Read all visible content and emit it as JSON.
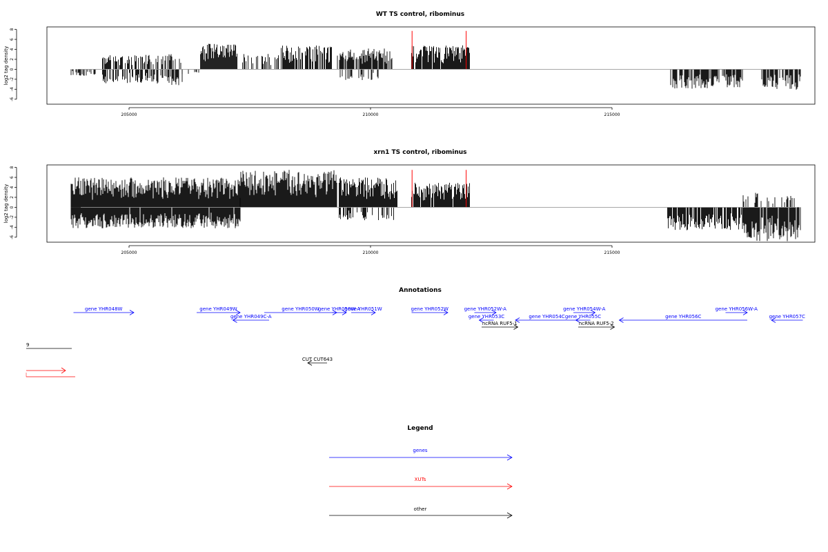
{
  "panels": [
    {
      "id": "wt",
      "title": "WT TS control, ribominus",
      "ylabel": "log2 tag density",
      "ylim": [
        -7,
        8.5
      ],
      "yticks": [
        -6,
        -4,
        -2,
        0,
        2,
        4,
        6,
        8
      ],
      "xlim": [
        203300,
        219200
      ],
      "xticks": [
        205000,
        210000,
        215000
      ],
      "xtick_labels": [
        "205000",
        "210000",
        "215000"
      ],
      "red_spikes": [
        {
          "x": 210860,
          "y": 7.7
        },
        {
          "x": 211980,
          "y": 7.7
        }
      ]
    },
    {
      "id": "xrn1",
      "title": "xrn1 TS control, ribominus",
      "ylabel": "log2 tag density",
      "ylim": [
        -7,
        8.5
      ],
      "yticks": [
        -6,
        -4,
        -2,
        0,
        2,
        4,
        6,
        8
      ],
      "xlim": [
        203300,
        219200
      ],
      "xticks": [
        205000,
        210000,
        215000
      ],
      "xtick_labels": [
        "205000",
        "210000",
        "215000"
      ],
      "red_spikes": [
        {
          "x": 210860,
          "y": 7.5
        },
        {
          "x": 211980,
          "y": 7.5
        }
      ]
    }
  ],
  "chart_data": [
    {
      "type": "bar",
      "title": "WT TS control, ribominus",
      "ylabel": "log2 tag density",
      "xlabel": "",
      "ylim": [
        -7,
        8.5
      ],
      "xlim": [
        203300,
        219200
      ],
      "grid": false,
      "segments": [
        {
          "x0": 203800,
          "x1": 204300,
          "sign": -1,
          "max": 1.3,
          "density": 0.4
        },
        {
          "x0": 204450,
          "x1": 205400,
          "sign": 1,
          "max": 3.0,
          "density": 0.6
        },
        {
          "x0": 204450,
          "x1": 205400,
          "sign": -1,
          "max": 2.8,
          "density": 0.5
        },
        {
          "x0": 205400,
          "x1": 206100,
          "sign": 1,
          "max": 3.2,
          "density": 0.5
        },
        {
          "x0": 205400,
          "x1": 206100,
          "sign": -1,
          "max": 3.2,
          "density": 0.5
        },
        {
          "x0": 206100,
          "x1": 206450,
          "sign": -1,
          "max": 1.0,
          "density": 0.3
        },
        {
          "x0": 206480,
          "x1": 207250,
          "sign": 1,
          "max": 5.2,
          "density": 1.0
        },
        {
          "x0": 207350,
          "x1": 208100,
          "sign": 1,
          "max": 3.2,
          "density": 0.55
        },
        {
          "x0": 208150,
          "x1": 209200,
          "sign": 1,
          "max": 5.0,
          "density": 0.7
        },
        {
          "x0": 209300,
          "x1": 210450,
          "sign": 1,
          "max": 4.2,
          "density": 0.85
        },
        {
          "x0": 209300,
          "x1": 210450,
          "sign": -1,
          "max": 2.2,
          "density": 0.25
        },
        {
          "x0": 210850,
          "x1": 212050,
          "sign": 1,
          "max": 4.8,
          "density": 0.95
        },
        {
          "x0": 216200,
          "x1": 217700,
          "sign": -1,
          "max": 3.9,
          "density": 0.75
        },
        {
          "x0": 218100,
          "x1": 218900,
          "sign": -1,
          "max": 4.1,
          "density": 0.75
        }
      ],
      "red_spikes": [
        {
          "x": 210860,
          "y": 7.7
        },
        {
          "x": 211980,
          "y": 7.7
        }
      ]
    },
    {
      "type": "bar",
      "title": "xrn1 TS control, ribominus",
      "ylabel": "log2 tag density",
      "xlabel": "",
      "ylim": [
        -7,
        8.5
      ],
      "xlim": [
        203300,
        219200
      ],
      "grid": false,
      "segments": [
        {
          "x0": 203800,
          "x1": 207300,
          "sign": 1,
          "max": 6.0,
          "density": 1.0
        },
        {
          "x0": 203800,
          "x1": 207300,
          "sign": -1,
          "max": 4.2,
          "density": 0.95
        },
        {
          "x0": 207300,
          "x1": 209300,
          "sign": 1,
          "max": 7.5,
          "density": 1.0
        },
        {
          "x0": 209350,
          "x1": 210550,
          "sign": 1,
          "max": 6.0,
          "density": 1.0
        },
        {
          "x0": 209350,
          "x1": 210550,
          "sign": -1,
          "max": 2.6,
          "density": 0.3
        },
        {
          "x0": 210850,
          "x1": 212050,
          "sign": 1,
          "max": 5.0,
          "density": 0.95
        },
        {
          "x0": 216150,
          "x1": 217700,
          "sign": -1,
          "max": 4.6,
          "density": 0.85
        },
        {
          "x0": 217700,
          "x1": 218900,
          "sign": 1,
          "max": 3.0,
          "density": 0.3
        },
        {
          "x0": 217700,
          "x1": 218900,
          "sign": -1,
          "max": 6.8,
          "density": 0.9
        }
      ],
      "red_spikes": [
        {
          "x": 210860,
          "y": 7.5
        },
        {
          "x": 211980,
          "y": 7.5
        }
      ]
    }
  ],
  "annotations": {
    "title": "Annotations",
    "features": [
      {
        "label": "gene YHR048W",
        "x0": 203850,
        "x1": 205100,
        "dir": "+",
        "type": "gene",
        "row": 0
      },
      {
        "label": "gene YHR049W",
        "x0": 206400,
        "x1": 207300,
        "dir": "+",
        "type": "gene",
        "row": 0
      },
      {
        "label": "gene YHR049C-A",
        "x0": 207150,
        "x1": 207900,
        "dir": "-",
        "type": "gene",
        "row": 1
      },
      {
        "label": "gene YHR050W",
        "x0": 207800,
        "x1": 209300,
        "dir": "+",
        "type": "gene",
        "row": 0
      },
      {
        "label": "gene YHR050W-A",
        "x0": 209200,
        "x1": 209500,
        "dir": "+",
        "type": "gene",
        "row": 0
      },
      {
        "label": "gene YHR051W",
        "x0": 209600,
        "x1": 210100,
        "dir": "+",
        "type": "gene",
        "row": 0
      },
      {
        "label": "gene YHR052W",
        "x0": 210850,
        "x1": 211600,
        "dir": "+",
        "type": "gene",
        "row": 0
      },
      {
        "label": "gene YHR052W-A",
        "x0": 212150,
        "x1": 212600,
        "dir": "+",
        "type": "gene",
        "row": 0
      },
      {
        "label": "gene YHR053C",
        "x0": 212250,
        "x1": 212550,
        "dir": "-",
        "type": "gene",
        "row": 1
      },
      {
        "label": "ncRNA RUF5-1",
        "x0": 212300,
        "x1": 213050,
        "dir": "+",
        "type": "other",
        "row": 2
      },
      {
        "label": "gene YHR054C",
        "x0": 213000,
        "x1": 214300,
        "dir": "-",
        "type": "gene",
        "row": 1
      },
      {
        "label": "gene YHR054W-A",
        "x0": 214200,
        "x1": 214650,
        "dir": "+",
        "type": "gene",
        "row": 0
      },
      {
        "label": "gene YHR055C",
        "x0": 214250,
        "x1": 214550,
        "dir": "-",
        "type": "gene",
        "row": 1
      },
      {
        "label": "ncRNA RUF5-2",
        "x0": 214300,
        "x1": 215050,
        "dir": "+",
        "type": "other",
        "row": 2
      },
      {
        "label": "gene YHR056C",
        "x0": 215150,
        "x1": 217800,
        "dir": "-",
        "type": "gene",
        "row": 1
      },
      {
        "label": "gene YHR056W-A",
        "x0": 217350,
        "x1": 217800,
        "dir": "+",
        "type": "gene",
        "row": 0
      },
      {
        "label": "gene YHR057C",
        "x0": 218300,
        "x1": 218950,
        "dir": "-",
        "type": "gene",
        "row": 1
      },
      {
        "label": "CUT CUT643",
        "x0": 208700,
        "x1": 209100,
        "dir": "-",
        "type": "other",
        "row": 3
      }
    ],
    "side_marks": {
      "black_label": "9",
      "red_label": "|"
    }
  },
  "legend": {
    "title": "Legend",
    "items": [
      {
        "label": "genes",
        "color": "#0000ff"
      },
      {
        "label": "XUTs",
        "color": "#ff0000"
      },
      {
        "label": "other",
        "color": "#000000"
      }
    ]
  },
  "colors": {
    "gene": "#0000ff",
    "xut": "#ff0000",
    "other": "#000000",
    "baseline": "#999999"
  }
}
